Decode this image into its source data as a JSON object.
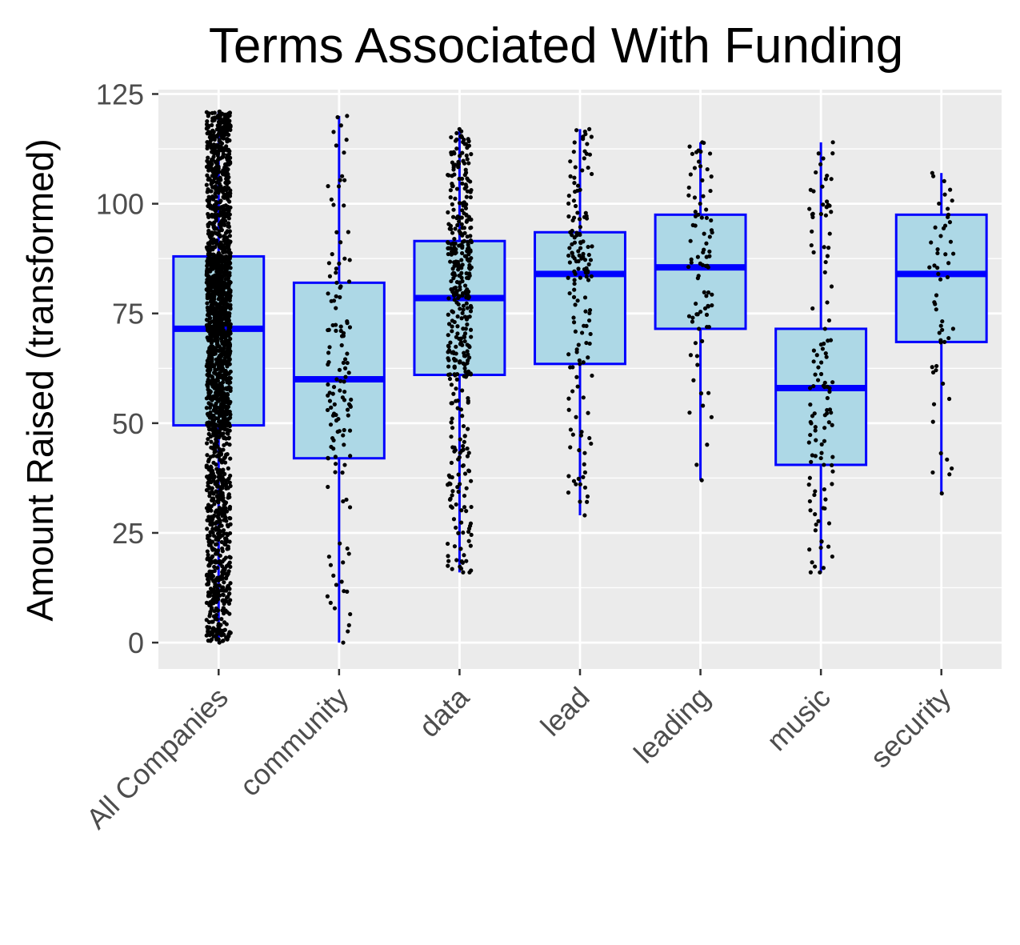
{
  "chart_data": {
    "type": "box",
    "title": "Terms Associated With Funding",
    "xlabel": "",
    "ylabel": "Amount Raised (transformed)",
    "ylim": [
      -6,
      126
    ],
    "yticks": [
      0,
      25,
      50,
      75,
      100,
      125
    ],
    "grid": true,
    "legend": "none",
    "colors": {
      "panel_bg": "#ebebeb",
      "grid": "#ffffff",
      "box_fill": "#add8e6",
      "box_stroke": "#0000ff",
      "points": "#000000",
      "tick_text": "#4d4d4d"
    },
    "categories": [
      "All Companies",
      "community",
      "data",
      "lead",
      "leading",
      "music",
      "security"
    ],
    "boxes": [
      {
        "category": "All Companies",
        "min": 0,
        "q1": 49.5,
        "median": 71.5,
        "q3": 88,
        "max": 121,
        "n_points": 2000
      },
      {
        "category": "community",
        "min": 0,
        "q1": 42,
        "median": 60,
        "q3": 82,
        "max": 120,
        "n_points": 130
      },
      {
        "category": "data",
        "min": 16,
        "q1": 61,
        "median": 78.5,
        "q3": 91.5,
        "max": 117,
        "n_points": 420
      },
      {
        "category": "lead",
        "min": 29,
        "q1": 63.5,
        "median": 84,
        "q3": 93.5,
        "max": 117,
        "n_points": 150
      },
      {
        "category": "leading",
        "min": 37,
        "q1": 71.5,
        "median": 85.5,
        "q3": 97.5,
        "max": 114,
        "n_points": 85
      },
      {
        "category": "music",
        "min": 16,
        "q1": 40.5,
        "median": 58,
        "q3": 71.5,
        "max": 114,
        "n_points": 120
      },
      {
        "category": "security",
        "min": 34,
        "q1": 68.5,
        "median": 84,
        "q3": 97.5,
        "max": 107,
        "n_points": 55
      }
    ]
  }
}
